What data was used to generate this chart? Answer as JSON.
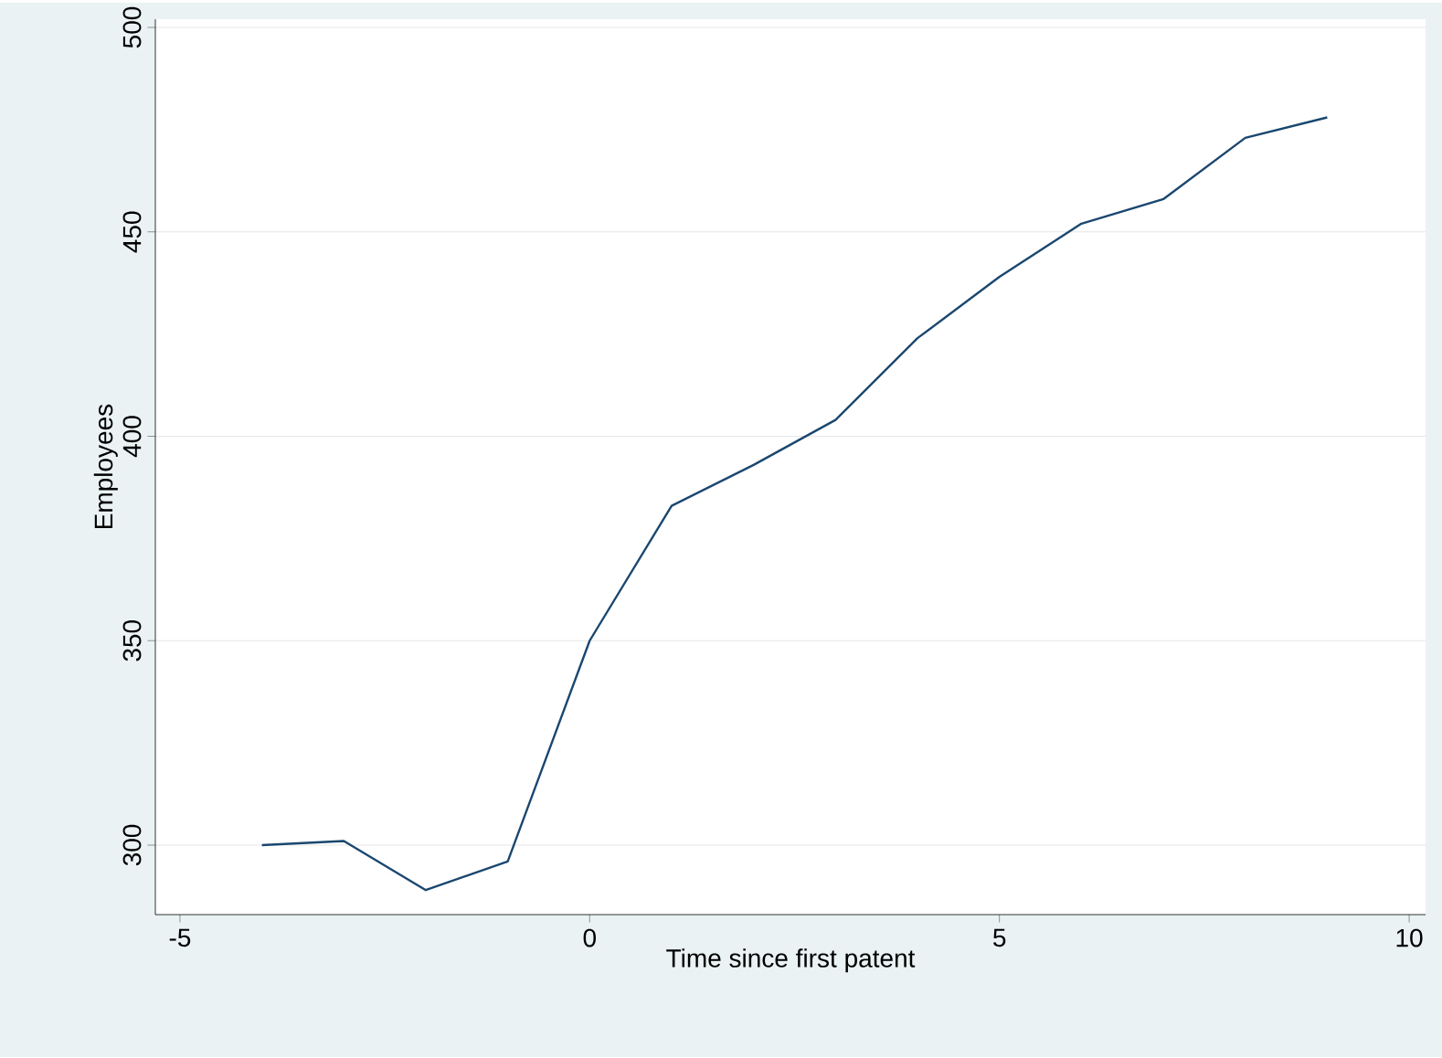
{
  "chart_data": {
    "type": "line",
    "xlabel": "Time since first patent",
    "ylabel": "Employees",
    "x": [
      -4,
      -3,
      -2,
      -1,
      0,
      1,
      2,
      3,
      4,
      5,
      6,
      7,
      8,
      9
    ],
    "series": [
      {
        "color": "#1a476f",
        "values": [
          300,
          301,
          289,
          296,
          350,
          383,
          393,
          404,
          424,
          439,
          452,
          458,
          473,
          478
        ]
      }
    ],
    "xlim": [
      -5.3,
      10.2
    ],
    "ylim": [
      283,
      502
    ],
    "xticks": [
      -5,
      0,
      5,
      10
    ],
    "yticks": [
      300,
      350,
      400,
      450,
      500
    ],
    "grid": "y",
    "marker": "none",
    "line_style": "solid"
  }
}
